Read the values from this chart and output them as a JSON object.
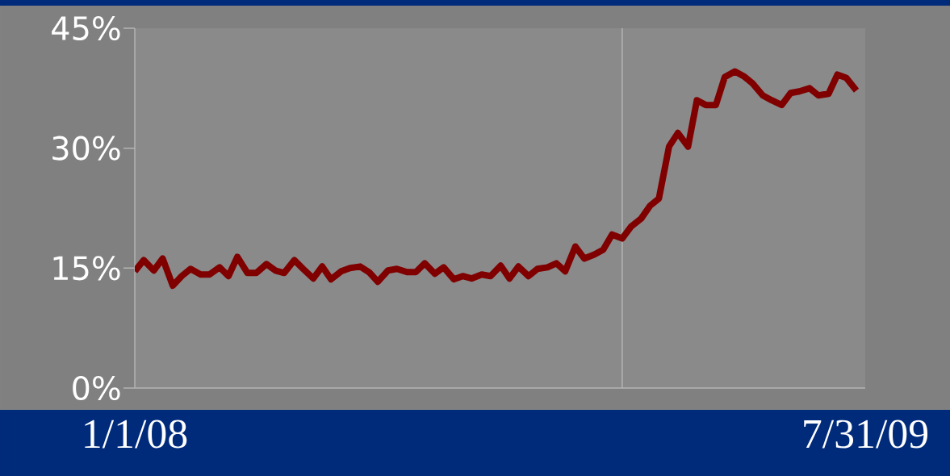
{
  "chart_data": {
    "type": "line",
    "x": [
      "2008-01-01",
      "2008-01-08",
      "2008-01-16",
      "2008-01-23",
      "2008-01-31",
      "2008-02-07",
      "2008-02-14",
      "2008-02-22",
      "2008-02-29",
      "2008-03-08",
      "2008-03-15",
      "2008-03-22",
      "2008-03-30",
      "2008-04-06",
      "2008-04-14",
      "2008-04-21",
      "2008-04-28",
      "2008-05-06",
      "2008-05-13",
      "2008-05-21",
      "2008-05-28",
      "2008-06-04",
      "2008-06-12",
      "2008-06-19",
      "2008-06-27",
      "2008-07-04",
      "2008-07-11",
      "2008-07-19",
      "2008-07-26",
      "2008-08-03",
      "2008-08-10",
      "2008-08-17",
      "2008-08-25",
      "2008-09-01",
      "2008-09-09",
      "2008-09-16",
      "2008-09-23",
      "2008-10-01",
      "2008-10-08",
      "2008-10-16",
      "2008-10-23",
      "2008-10-30",
      "2008-11-07",
      "2008-11-14",
      "2008-11-22",
      "2008-11-29",
      "2008-12-06",
      "2008-12-14",
      "2008-12-21",
      "2008-12-29",
      "2009-01-05",
      "2009-01-12",
      "2009-01-20",
      "2009-01-27",
      "2009-02-04",
      "2009-02-11",
      "2009-02-18",
      "2009-02-26",
      "2009-03-05",
      "2009-03-13",
      "2009-03-20",
      "2009-03-27",
      "2009-04-04",
      "2009-04-11",
      "2009-04-19",
      "2009-04-26",
      "2009-05-03",
      "2009-05-11",
      "2009-05-18",
      "2009-05-26",
      "2009-06-02",
      "2009-06-09",
      "2009-06-17",
      "2009-06-24",
      "2009-07-02",
      "2009-07-09",
      "2009-07-16",
      "2009-07-24"
    ],
    "series": [
      {
        "color": "#800000",
        "values": [
          14.6,
          16.0,
          14.7,
          16.2,
          12.8,
          14.0,
          14.9,
          14.2,
          14.2,
          15.1,
          14.0,
          16.4,
          14.4,
          14.4,
          15.5,
          14.7,
          14.4,
          16.0,
          14.9,
          13.7,
          15.2,
          13.6,
          14.6,
          15.0,
          15.2,
          14.5,
          13.3,
          14.7,
          14.9,
          14.5,
          14.5,
          15.6,
          14.3,
          15.1,
          13.6,
          14.0,
          13.7,
          14.2,
          14.0,
          15.3,
          13.7,
          15.2,
          14.0,
          14.9,
          15.1,
          15.6,
          14.6,
          17.7,
          16.2,
          16.7,
          17.3,
          19.2,
          18.7,
          20.2,
          21.2,
          22.8,
          23.7,
          30.2,
          31.9,
          30.2,
          36.0,
          35.4,
          35.4,
          38.9,
          39.6,
          39.0,
          38.1,
          36.6,
          36.0,
          35.4,
          36.9,
          37.1,
          37.5,
          36.6,
          36.8,
          39.2,
          38.8,
          37.2
        ]
      }
    ],
    "xlim": [
      "2008-01-01",
      "2009-07-31"
    ],
    "xticks": [
      {
        "value": "2008-01-01",
        "label": "1/1/08"
      },
      {
        "value": "2009-07-31",
        "label": "7/31/09"
      }
    ],
    "ylim": [
      0,
      45
    ],
    "yticks": [
      {
        "value": 0,
        "label": "0%"
      },
      {
        "value": 15,
        "label": "15%"
      },
      {
        "value": 30,
        "label": "30%"
      },
      {
        "value": 45,
        "label": "45%"
      }
    ],
    "ref_lines": [
      {
        "axis": "x",
        "value": "2009-01-20",
        "color": "#b4b4b4"
      }
    ]
  }
}
